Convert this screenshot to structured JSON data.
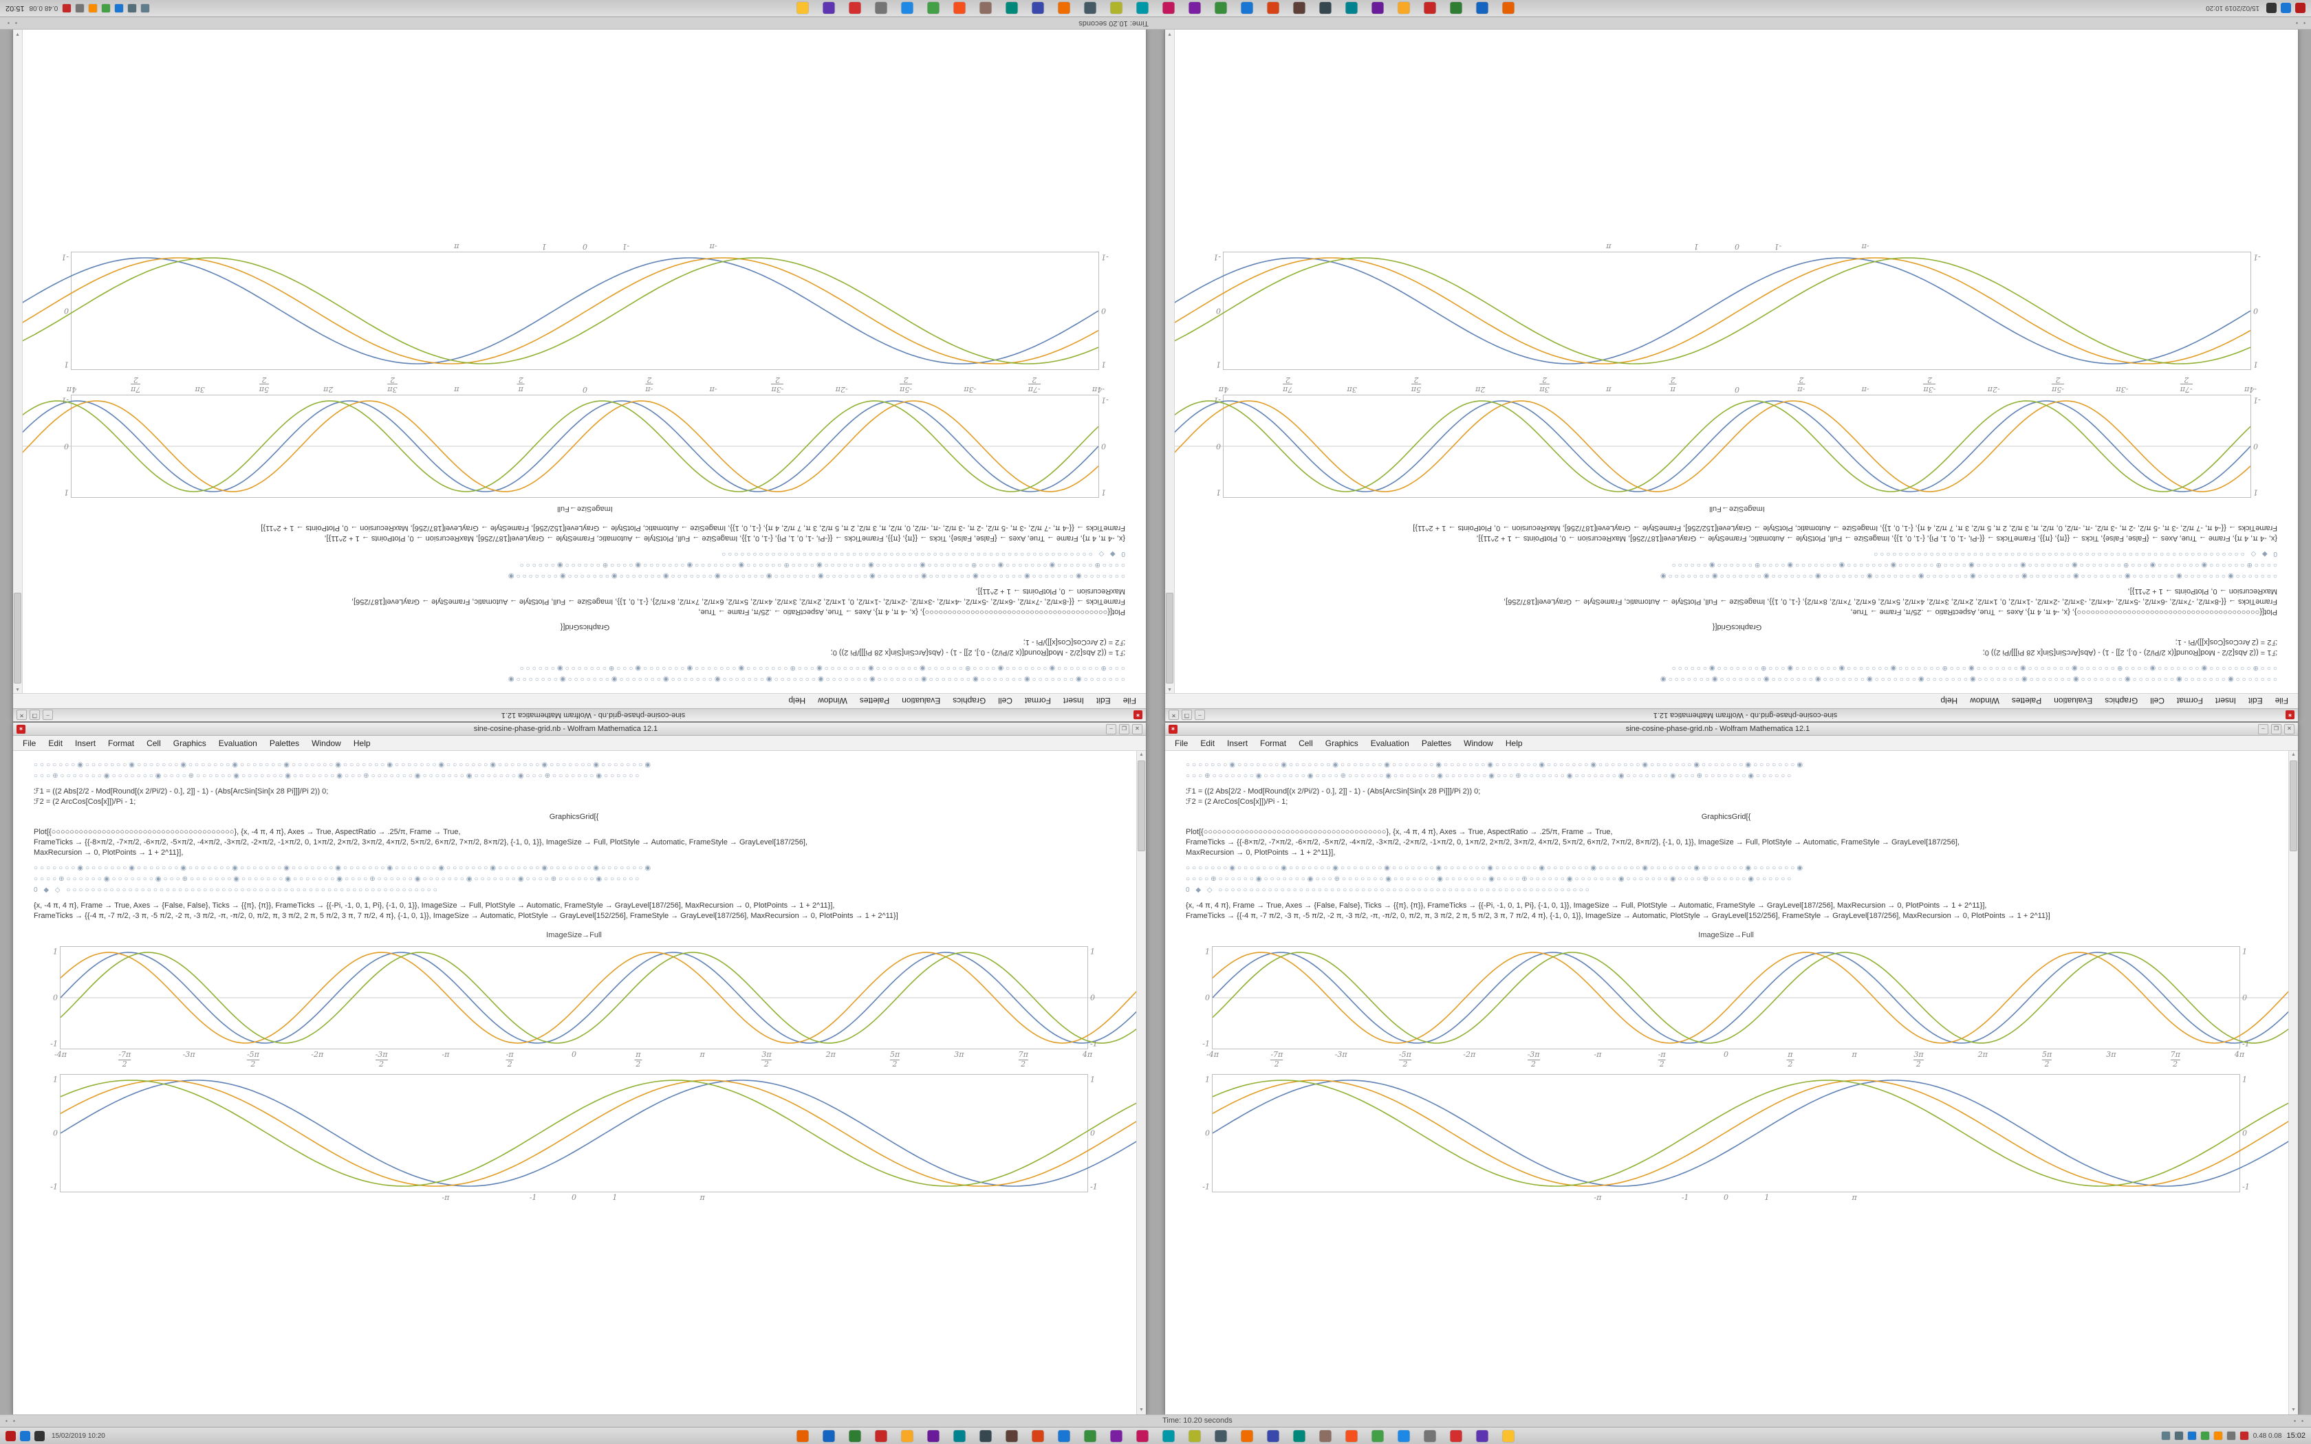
{
  "app": {
    "title": "sine-cosine-phase-grid.nb - Wolfram Mathematica 12.1"
  },
  "window": {
    "buttons": {
      "min": "–",
      "max": "❐",
      "close": "✕"
    },
    "menu": [
      "File",
      "Edit",
      "Insert",
      "Format",
      "Cell",
      "Graphics",
      "Evaluation",
      "Palettes",
      "Window",
      "Help"
    ],
    "scroll_up": "▲",
    "scroll_down": "▼"
  },
  "notebook": {
    "swatch_row_a": "○○○○○○○◉○○○○○○○◉○○○○○○○◉○○○○○○○◉○○○○○○○◉○○○○○○○◉○○○○○○○◉○○○○○○○◉○○○○○○○◉○○○○○○○◉○○○○○○○◉○○○○○○○◉",
    "swatch_row_b": "○○○⊕○○○○○○○◉○○○○○○○◉○○○○⊕○○○○○○◉○○○○○○○◉○○○○○○○◉○○○⊕○○○○○○○◉○○○○○○○◉○○○○○○○◉○○○⊕○○○○○○○◉○○○○○○",
    "def_line_1": "ℱ1 = ((2 Abs[2/2 - Mod[Round[(x 2/Pi/2) - 0.], 2]] - 1) - (Abs[ArcSin[Sin[x 28 Pi]]]/Pi 2)) 0;",
    "def_line_2": "ℱ2 = (2 ArcCos[Cos[x]])/Pi - 1;",
    "grid_open": "GraphicsGrid[{",
    "plot1_line1": "Plot[{○○○○○○○○○○○○○○○○○○○○○○○○○○○○○○○○○○○○○○○○}, {x, -4 π, 4 π}, Axes → True, AspectRatio → .25/π, Frame → True,",
    "plot1_line2": "FrameTicks → {{-8×π/2, -7×π/2, -6×π/2, -5×π/2, -4×π/2, -3×π/2, -2×π/2, -1×π/2, 0, 1×π/2, 2×π/2, 3×π/2, 4×π/2, 5×π/2, 6×π/2, 7×π/2, 8×π/2}, {-1, 0, 1}}, ImageSize → Full, PlotStyle → Automatic, FrameStyle → GrayLevel[187/256],",
    "plot1_line3": "MaxRecursion → 0, PlotPoints → 1 + 2^11}],",
    "swatch_row_c": "○○○○○○○◉○○○○○○○◉○○○○○○○◉○○○○○○○◉○○○○○○○◉○○○○○○○◉○○○○○○○◉○○○○○○○◉○○○○○○○◉○○○○○○○◉○○○○○○○◉○○○○○○○◉",
    "swatch_row_d": "○○○○⊕○○○○○○◉○○○○○○○◉○○○⊕○○○○○○○◉○○○○○○○◉○○○○○○○◉○○○○⊕○○○○○○◉○○○○○○○◉○○○○○○○◉○○○○⊕○○○○○○◉○○○○○○",
    "swatch_row_e": "0 ◆ ◇ ○○○○○○○○○○○○○○○○○○○○○○○○○○○○○○○○○○○○○○○○○○○○○○○○○○○○○○○○○○○○",
    "plot2_line1": "{x, -4 π, 4 π}, Frame → True, Axes → {False, False}, Ticks → {{π}, {π}}, FrameTicks → {{-Pi, -1, 0, 1, Pi}, {-1, 0, 1}}, ImageSize → Full, PlotStyle → Automatic, FrameStyle → GrayLevel[187/256], MaxRecursion → 0, PlotPoints → 1 + 2^11}],",
    "plot2_line2": "FrameTicks → {{-4 π, -7 π/2, -3 π, -5 π/2, -2 π, -3 π/2, -π, -π/2, 0, π/2, π, 3 π/2, 2 π, 5 π/2, 3 π, 7 π/2, 4 π}, {-1, 0, 1}}, ImageSize → Automatic, PlotStyle → GrayLevel[152/256], FrameStyle → GrayLevel[187/256], MaxRecursion → 0, PlotPoints → 1 + 2^11}]",
    "size_label": "ImageSize→Full"
  },
  "plots": {
    "busy": {
      "h": 148,
      "xmin": -12.566,
      "xmax": 12.566,
      "axes": true,
      "series": [
        {
          "color": "#5e81b5",
          "k": 2,
          "ph": 0
        },
        {
          "color": "#e19c24",
          "k": 2,
          "ph": 0.45
        },
        {
          "color": "#8fb032",
          "k": 2,
          "ph": -0.45
        }
      ],
      "xticks": [
        [
          "-4π",
          0
        ],
        [
          "-7π/2",
          0.0625
        ],
        [
          "-3π",
          0.125
        ],
        [
          "-5π/2",
          0.1875
        ],
        [
          "-2π",
          0.25
        ],
        [
          "-3π/2",
          0.3125
        ],
        [
          "-π",
          0.375
        ],
        [
          "-π/2",
          0.4375
        ],
        [
          "0",
          0.5
        ],
        [
          "π/2",
          0.5625
        ],
        [
          "π",
          0.625
        ],
        [
          "3π/2",
          0.6875
        ],
        [
          "2π",
          0.75
        ],
        [
          "5π/2",
          0.8125
        ],
        [
          "3π",
          0.875
        ],
        [
          "7π/2",
          0.9375
        ],
        [
          "4π",
          1
        ]
      ],
      "yticks": [
        "-1",
        "0",
        "1"
      ]
    },
    "smooth": {
      "h": 170,
      "xmin": -12.566,
      "xmax": 12.566,
      "axes": false,
      "series": [
        {
          "color": "#5e81b5",
          "k": 1,
          "ph": 0
        },
        {
          "color": "#e19c24",
          "k": 1,
          "ph": 0.38
        },
        {
          "color": "#8fb032",
          "k": 1,
          "ph": 0.76
        }
      ],
      "xticks": [
        [
          "-π",
          0.375
        ],
        [
          "-1",
          0.4602
        ],
        [
          "0",
          0.5
        ],
        [
          "1",
          0.5398
        ],
        [
          "π",
          0.625
        ]
      ],
      "yticks": [
        "-1",
        "0",
        "1"
      ]
    }
  },
  "taskbar": {
    "status_left_glyphs": "▪ ▪",
    "status_time": "Time: 10.20 seconds",
    "status_right_glyphs": "▪ ▪",
    "left_icons": [
      {
        "n": "start-menu-icon",
        "c": "#b71c1c"
      },
      {
        "n": "files-launcher-icon",
        "c": "#1976d2"
      },
      {
        "n": "terminal-launcher-icon",
        "c": "#333333"
      }
    ],
    "left_text": "15/02/2019 10:20",
    "apps": [
      {
        "n": "browser-icon",
        "c": "#e66000"
      },
      {
        "n": "files-icon",
        "c": "#1565c0"
      },
      {
        "n": "mail-icon",
        "c": "#2e7d32"
      },
      {
        "n": "pdf-icon",
        "c": "#c62828"
      },
      {
        "n": "notes-icon",
        "c": "#f9a825"
      },
      {
        "n": "media-icon",
        "c": "#6a1b9a"
      },
      {
        "n": "music-icon",
        "c": "#00838f"
      },
      {
        "n": "terminal-icon",
        "c": "#37474f"
      },
      {
        "n": "archive-icon",
        "c": "#5d4037"
      },
      {
        "n": "paint-icon",
        "c": "#d84315"
      },
      {
        "n": "code-icon",
        "c": "#1976d2"
      },
      {
        "n": "sheets-icon",
        "c": "#388e3c"
      },
      {
        "n": "draw-icon",
        "c": "#7b1fa2"
      },
      {
        "n": "photos-icon",
        "c": "#c2185b"
      },
      {
        "n": "network-app-icon",
        "c": "#0097a7"
      },
      {
        "n": "camera-icon",
        "c": "#afb42b"
      },
      {
        "n": "monitor-icon",
        "c": "#455a64"
      },
      {
        "n": "office-icon",
        "c": "#ef6c00"
      },
      {
        "n": "ide-icon",
        "c": "#3949ab"
      },
      {
        "n": "disk-icon",
        "c": "#00897b"
      },
      {
        "n": "package-icon",
        "c": "#8d6e63"
      },
      {
        "n": "player-icon",
        "c": "#f4511e"
      },
      {
        "n": "sync-icon",
        "c": "#43a047"
      },
      {
        "n": "web-icon",
        "c": "#1e88e5"
      },
      {
        "n": "settings-icon",
        "c": "#757575"
      },
      {
        "n": "reader-icon",
        "c": "#d32f2f"
      },
      {
        "n": "vector-icon",
        "c": "#5e35b1"
      },
      {
        "n": "text-editor-icon",
        "c": "#fbc02d"
      }
    ],
    "tray": [
      {
        "n": "volume-icon",
        "c": "#607d8b"
      },
      {
        "n": "network-icon",
        "c": "#546e7a"
      },
      {
        "n": "bluetooth-icon",
        "c": "#1976d2"
      },
      {
        "n": "battery-icon",
        "c": "#43a047"
      },
      {
        "n": "update-icon",
        "c": "#fb8c00"
      },
      {
        "n": "keyboard-icon",
        "c": "#757575"
      },
      {
        "n": "shield-icon",
        "c": "#c62828"
      }
    ],
    "tray_text": "0.48 0.08",
    "clock": "15:02"
  }
}
